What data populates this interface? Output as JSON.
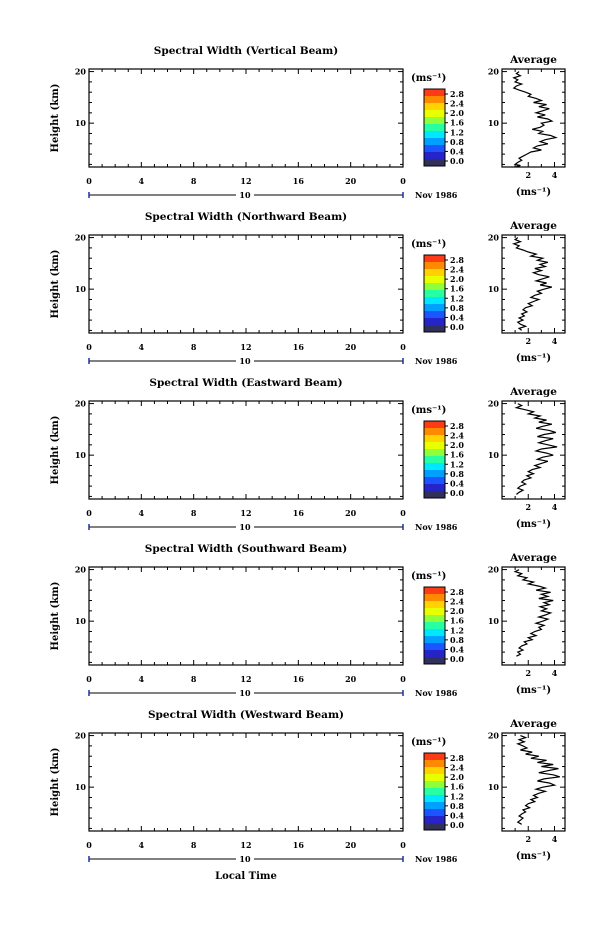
{
  "figure": {
    "x_axis_label": "Local Time",
    "x_ticks": [
      "0",
      "4",
      "8",
      "12",
      "16",
      "20",
      "0"
    ],
    "y_label": "Height (km)",
    "y_ticks": [
      "20",
      "10"
    ],
    "date_day": "10",
    "date_month": "Nov 1986",
    "unit_label": "(ms⁻¹)",
    "colorbar_ticks": [
      "2.8",
      "2.4",
      "2.0",
      "1.6",
      "1.2",
      "0.8",
      "0.4",
      "0.0"
    ],
    "colorbar_colors": [
      "#ff3a16",
      "#ff8a00",
      "#ffd200",
      "#e8ff00",
      "#8fff3a",
      "#26ffa2",
      "#00e8ff",
      "#00a0ff",
      "#1a55ff",
      "#2424c8",
      "#30305a"
    ],
    "avg_title": "Average",
    "avg_xticks": [
      "2",
      "4"
    ],
    "avg_unit": "(ms⁻¹)"
  },
  "chart_data": [
    {
      "type": "line",
      "title": "Spectral Width (Vertical Beam)",
      "xlabel": "(ms⁻¹)",
      "ylabel": "Height (km)",
      "xlim": [
        0,
        4.8
      ],
      "ylim": [
        1.5,
        20.5
      ],
      "x": [
        1.3,
        1.1,
        1.4,
        0.9,
        1.2,
        1.0,
        1.5,
        1.1,
        0.9,
        1.3,
        1.8,
        2.2,
        2.0,
        2.6,
        3.0,
        2.4,
        3.4,
        2.8,
        3.6,
        3.1,
        2.6,
        3.3,
        2.7,
        3.5,
        3.8,
        3.0,
        3.2,
        2.9,
        2.3,
        3.1,
        2.8,
        3.7,
        4.1,
        3.3,
        2.9,
        3.5,
        2.7,
        2.4,
        3.0,
        2.2,
        1.9,
        1.6,
        1.3,
        1.5,
        1.2,
        1.0,
        1.4,
        1.1
      ],
      "y": [
        20.0,
        19.6,
        19.2,
        18.8,
        18.4,
        18.0,
        17.6,
        17.2,
        16.8,
        16.4,
        16.0,
        15.6,
        15.2,
        14.8,
        14.4,
        14.0,
        13.6,
        13.2,
        12.8,
        12.4,
        12.0,
        11.6,
        11.2,
        10.8,
        10.4,
        10.0,
        9.6,
        9.2,
        8.8,
        8.4,
        8.0,
        7.6,
        7.2,
        6.8,
        6.4,
        6.0,
        5.6,
        5.2,
        4.8,
        4.4,
        4.0,
        3.6,
        3.2,
        2.8,
        2.4,
        2.0,
        1.8,
        1.6
      ]
    },
    {
      "type": "line",
      "title": "Spectral Width (Northward Beam)",
      "xlabel": "(ms⁻¹)",
      "ylabel": "Height (km)",
      "xlim": [
        0,
        4.8
      ],
      "ylim": [
        1.5,
        20.5
      ],
      "x": [
        1.2,
        1.0,
        1.4,
        0.9,
        1.3,
        1.1,
        1.6,
        2.0,
        2.6,
        2.2,
        3.1,
        2.7,
        3.5,
        2.9,
        3.3,
        2.5,
        3.0,
        2.4,
        2.8,
        3.6,
        3.1,
        2.6,
        3.4,
        2.9,
        3.8,
        3.2,
        2.7,
        3.0,
        2.5,
        2.2,
        2.8,
        2.4,
        2.0,
        2.3,
        1.8,
        1.6,
        1.9,
        1.5,
        1.7,
        1.3,
        1.6,
        1.2,
        1.4,
        1.8,
        1.3,
        1.5
      ],
      "y": [
        20.0,
        19.6,
        19.2,
        18.8,
        18.4,
        18.0,
        17.6,
        17.2,
        16.8,
        16.4,
        16.0,
        15.6,
        15.2,
        14.8,
        14.4,
        14.0,
        13.6,
        13.2,
        12.8,
        12.4,
        12.0,
        11.6,
        11.2,
        10.8,
        10.4,
        10.0,
        9.6,
        9.2,
        8.8,
        8.4,
        8.0,
        7.6,
        7.2,
        6.8,
        6.4,
        6.0,
        5.6,
        5.2,
        4.8,
        4.4,
        4.0,
        3.6,
        3.2,
        2.8,
        2.4,
        2.0
      ]
    },
    {
      "type": "line",
      "title": "Spectral Width (Eastward Beam)",
      "xlabel": "(ms⁻¹)",
      "ylabel": "Height (km)",
      "xlim": [
        0,
        4.8
      ],
      "ylim": [
        1.5,
        20.5
      ],
      "x": [
        1.2,
        1.5,
        1.1,
        1.8,
        2.4,
        2.0,
        2.9,
        2.5,
        3.4,
        2.8,
        3.8,
        3.1,
        2.6,
        3.6,
        4.1,
        3.2,
        2.7,
        3.9,
        3.3,
        2.8,
        3.5,
        4.2,
        3.0,
        2.6,
        3.4,
        3.9,
        3.1,
        2.7,
        3.5,
        3.0,
        2.5,
        2.9,
        2.3,
        2.0,
        2.4,
        1.9,
        2.2,
        1.7,
        1.5,
        1.8,
        1.4,
        1.2,
        1.6,
        1.3,
        1.1
      ],
      "y": [
        20.0,
        19.6,
        19.2,
        18.8,
        18.4,
        18.0,
        17.6,
        17.2,
        16.8,
        16.4,
        16.0,
        15.6,
        15.2,
        14.8,
        14.4,
        14.0,
        13.6,
        13.2,
        12.8,
        12.4,
        12.0,
        11.6,
        11.2,
        10.8,
        10.4,
        10.0,
        9.6,
        9.2,
        8.8,
        8.4,
        8.0,
        7.6,
        7.2,
        6.8,
        6.4,
        6.0,
        5.6,
        5.2,
        4.8,
        4.4,
        4.0,
        3.6,
        3.2,
        2.8,
        2.4
      ]
    },
    {
      "type": "line",
      "title": "Spectral Width (Southward Beam)",
      "xlabel": "(ms⁻¹)",
      "ylabel": "Height (km)",
      "xlim": [
        0,
        4.8
      ],
      "ylim": [
        1.5,
        20.5
      ],
      "x": [
        1.3,
        1.0,
        1.5,
        1.2,
        1.9,
        1.6,
        2.4,
        2.0,
        2.8,
        3.3,
        2.6,
        3.7,
        3.0,
        3.5,
        2.8,
        3.9,
        3.2,
        3.6,
        2.9,
        3.4,
        3.0,
        3.7,
        3.3,
        2.8,
        3.5,
        3.1,
        2.6,
        3.2,
        2.8,
        3.0,
        2.5,
        2.2,
        2.6,
        2.0,
        2.3,
        1.7,
        1.9,
        1.5,
        1.3,
        1.6,
        1.2,
        1.4,
        1.1
      ],
      "y": [
        20.0,
        19.6,
        19.2,
        18.8,
        18.4,
        18.0,
        17.6,
        17.2,
        16.8,
        16.4,
        16.0,
        15.6,
        15.2,
        14.8,
        14.4,
        14.0,
        13.6,
        13.2,
        12.8,
        12.4,
        12.0,
        11.6,
        11.2,
        10.8,
        10.4,
        10.0,
        9.6,
        9.2,
        8.8,
        8.4,
        8.0,
        7.6,
        7.2,
        6.8,
        6.4,
        6.0,
        5.6,
        5.2,
        4.8,
        4.4,
        4.0,
        3.6,
        3.2
      ]
    },
    {
      "type": "line",
      "title": "Spectral Width (Westward Beam)",
      "xlabel": "(ms⁻¹)",
      "ylabel": "Height (km)",
      "xlim": [
        0,
        4.8
      ],
      "ylim": [
        1.5,
        20.5
      ],
      "x": [
        1.4,
        1.8,
        1.3,
        1.7,
        1.2,
        1.6,
        1.9,
        1.4,
        2.3,
        1.8,
        2.8,
        2.2,
        3.4,
        2.7,
        3.9,
        3.0,
        4.3,
        3.5,
        2.8,
        3.9,
        4.4,
        3.2,
        2.7,
        3.6,
        4.0,
        3.1,
        2.6,
        3.3,
        2.8,
        2.4,
        2.7,
        2.2,
        2.5,
        2.0,
        1.8,
        2.1,
        1.6,
        1.8,
        1.5,
        1.3,
        1.6,
        1.4,
        1.2,
        1.5
      ],
      "y": [
        20.0,
        19.6,
        19.2,
        18.8,
        18.4,
        18.0,
        17.6,
        17.2,
        16.8,
        16.4,
        16.0,
        15.6,
        15.2,
        14.8,
        14.4,
        14.0,
        13.6,
        13.2,
        12.8,
        12.4,
        12.0,
        11.6,
        11.2,
        10.8,
        10.4,
        10.0,
        9.6,
        9.2,
        8.8,
        8.4,
        8.0,
        7.6,
        7.2,
        6.8,
        6.4,
        6.0,
        5.6,
        5.2,
        4.8,
        4.4,
        4.0,
        3.6,
        3.2,
        2.8
      ]
    }
  ]
}
